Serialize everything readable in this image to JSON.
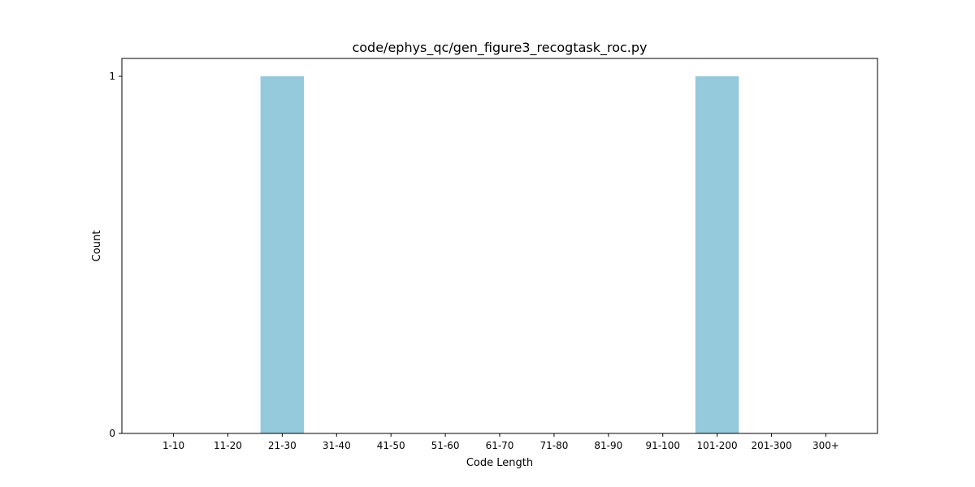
{
  "chart_data": {
    "type": "bar",
    "title": "code/ephys_qc/gen_figure3_recogtask_roc.py",
    "xlabel": "Code Length",
    "ylabel": "Count",
    "categories": [
      "1-10",
      "11-20",
      "21-30",
      "31-40",
      "41-50",
      "51-60",
      "61-70",
      "71-80",
      "81-90",
      "91-100",
      "101-200",
      "201-300",
      "300+"
    ],
    "values": [
      0,
      0,
      1,
      0,
      0,
      0,
      0,
      0,
      0,
      0,
      1,
      0,
      0
    ],
    "ylim": [
      0,
      1.05
    ],
    "yticks": [
      0,
      1
    ],
    "bar_color": "#95c9dc",
    "grid": false,
    "legend": "none"
  }
}
